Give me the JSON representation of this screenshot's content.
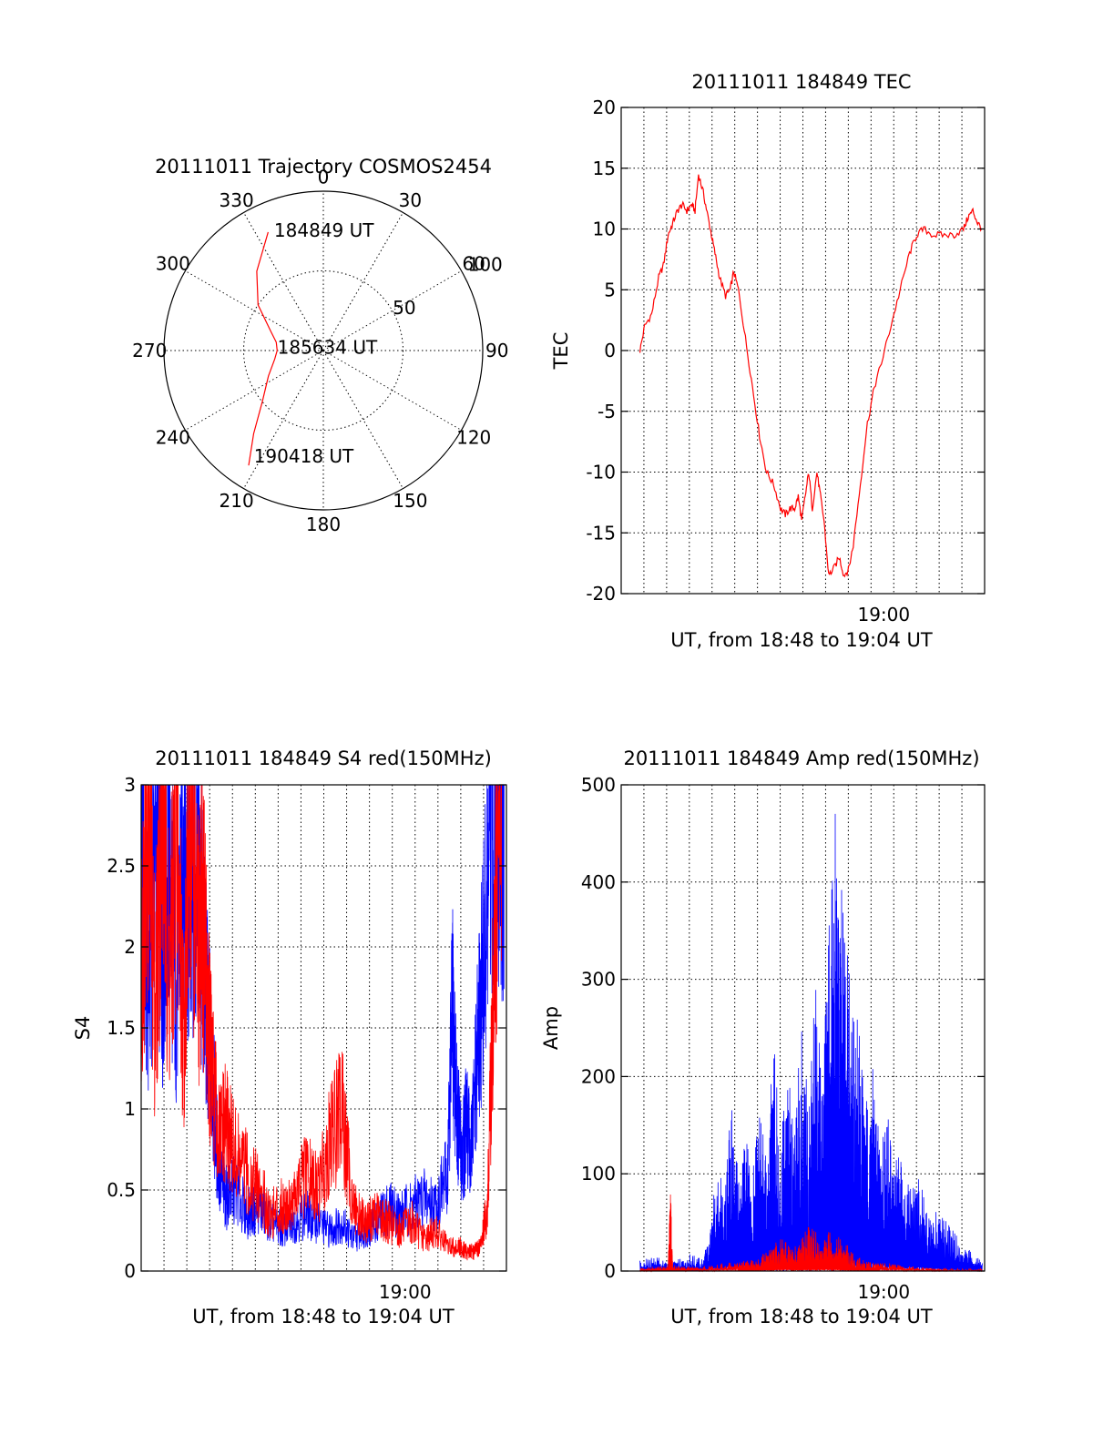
{
  "colors": {
    "red": "#ff0000",
    "blue": "#0000ff",
    "axes": "#000000",
    "background": "#ffffff"
  },
  "chart_data": [
    {
      "type": "polar",
      "title": "20111011 Trajectory COSMOS2454",
      "angle_ticks": [
        "0",
        "30",
        "60",
        "90",
        "120",
        "150",
        "180",
        "210",
        "240",
        "270",
        "300",
        "330"
      ],
      "angle_values_deg": [
        0,
        30,
        60,
        90,
        120,
        150,
        180,
        210,
        240,
        270,
        300,
        330
      ],
      "radius_ticks": [
        "50",
        "100"
      ],
      "radius_values": [
        50,
        100
      ],
      "rlim": [
        0,
        100
      ],
      "grid": true,
      "series": [
        {
          "color": "red",
          "points_az_el": [
            [
              335,
              8
            ],
            [
              320,
              25
            ],
            [
              305,
              40
            ],
            [
              290,
              55
            ],
            [
              280,
              60
            ],
            [
              270,
              61
            ],
            [
              260,
              59
            ],
            [
              245,
              52
            ],
            [
              230,
              40
            ],
            [
              220,
              22
            ],
            [
              213,
              4
            ]
          ]
        }
      ],
      "annotations": [
        {
          "text": "184849 UT",
          "az": 337,
          "el": 8
        },
        {
          "text": "185634 UT",
          "az": 274,
          "el": 60
        },
        {
          "text": "190418 UT",
          "az": 214,
          "el": 10
        }
      ]
    },
    {
      "type": "line",
      "title": "20111011 184849 TEC",
      "xlabel": "UT, from 18:48 to 19:04 UT",
      "ylabel": "TEC",
      "xlim": [
        0,
        15.5
      ],
      "ylim": [
        -20,
        20
      ],
      "xtick_labels": [
        {
          "x": 11.2,
          "label": "19:00"
        }
      ],
      "yticks": [
        -20,
        -15,
        -10,
        -5,
        0,
        5,
        10,
        15,
        20
      ],
      "grid": true,
      "series": [
        {
          "color": "red",
          "x": [
            0.8,
            1.0,
            1.3,
            1.6,
            1.8,
            2.0,
            2.2,
            2.4,
            2.6,
            2.8,
            3.0,
            3.15,
            3.3,
            3.5,
            3.7,
            3.85,
            4.0,
            4.2,
            4.45,
            4.65,
            4.8,
            5.0,
            5.3,
            5.6,
            5.9,
            6.2,
            6.5,
            6.8,
            7.0,
            7.2,
            7.4,
            7.55,
            7.7,
            7.85,
            8.0,
            8.15,
            8.35,
            8.5,
            8.65,
            8.85,
            9.05,
            9.3,
            9.5,
            9.7,
            9.9,
            10.2,
            10.5,
            10.8,
            11.1,
            11.5,
            11.9,
            12.3,
            12.6,
            12.9,
            13.3,
            13.7,
            14.2,
            14.6,
            14.8,
            15.0,
            15.2,
            15.4
          ],
          "y": [
            0,
            2,
            3,
            6,
            7,
            9.5,
            10.5,
            11.5,
            12,
            11.5,
            12,
            11.5,
            14.5,
            13,
            11,
            9.5,
            8,
            6,
            4.5,
            5,
            6.5,
            5,
            1,
            -3,
            -7,
            -10,
            -11,
            -13,
            -13.5,
            -13,
            -13,
            -12,
            -14,
            -12,
            -10,
            -13,
            -10,
            -12,
            -14,
            -18.5,
            -18,
            -17,
            -18.5,
            -18,
            -16,
            -11,
            -6,
            -3,
            -1,
            2,
            5,
            8,
            9.5,
            10,
            9.5,
            9.5,
            9.5,
            10,
            11,
            11.5,
            10.5,
            10
          ]
        }
      ]
    },
    {
      "type": "line",
      "title": "20111011 184849 S4 red(150MHz)",
      "xlabel": "UT, from 18:48 to 19:04 UT",
      "ylabel": "S4",
      "xlim": [
        0,
        15.5
      ],
      "ylim": [
        0,
        3
      ],
      "xtick_labels": [
        {
          "x": 11.2,
          "label": "19:00"
        }
      ],
      "yticks": [
        0,
        0.5,
        1,
        1.5,
        2,
        2.5,
        3
      ],
      "ytick_labels": [
        "0",
        "0.5",
        "1",
        "1.5",
        "2",
        "2.5",
        "3"
      ],
      "grid": true,
      "series": [
        {
          "color": "blue",
          "x": [
            0,
            0.3,
            0.6,
            0.9,
            1.2,
            1.5,
            1.8,
            2.1,
            2.4,
            2.6,
            2.8,
            3.0,
            3.3,
            3.6,
            4.0,
            4.5,
            5.0,
            5.5,
            6.0,
            6.5,
            7.0,
            7.5,
            8.0,
            8.5,
            9.0,
            9.5,
            10.0,
            10.5,
            11.0,
            11.5,
            12.0,
            12.5,
            13.0,
            13.2,
            13.4,
            13.6,
            13.8,
            14.0,
            14.3,
            14.6,
            14.9,
            15.2,
            15.4
          ],
          "y": [
            2.5,
            1.8,
            2.8,
            2.0,
            2.6,
            1.7,
            2.9,
            2.1,
            2.6,
            2.0,
            1.6,
            1.2,
            0.6,
            0.45,
            0.5,
            0.35,
            0.4,
            0.3,
            0.25,
            0.3,
            0.35,
            0.3,
            0.25,
            0.3,
            0.2,
            0.25,
            0.3,
            0.4,
            0.35,
            0.4,
            0.45,
            0.4,
            0.6,
            1.6,
            1.0,
            0.7,
            0.9,
            0.7,
            1.4,
            2.0,
            3.0,
            3.0,
            3.0
          ]
        },
        {
          "color": "red",
          "x": [
            0,
            0.3,
            0.6,
            0.9,
            1.2,
            1.5,
            1.8,
            2.1,
            2.4,
            2.6,
            2.8,
            3.0,
            3.3,
            3.6,
            4.0,
            4.5,
            5.0,
            5.5,
            6.0,
            6.5,
            7.0,
            7.5,
            8.0,
            8.5,
            9.0,
            9.5,
            10.0,
            10.5,
            11.0,
            11.5,
            12.0,
            12.5,
            13.0,
            13.5,
            13.8,
            14.1,
            14.4,
            14.7,
            15.0,
            15.3
          ],
          "y": [
            2.0,
            2.9,
            1.6,
            3.0,
            1.8,
            2.7,
            1.5,
            2.9,
            1.9,
            2.3,
            1.7,
            1.2,
            0.8,
            0.9,
            0.7,
            0.6,
            0.5,
            0.35,
            0.4,
            0.45,
            0.6,
            0.5,
            0.8,
            1.0,
            0.4,
            0.3,
            0.35,
            0.3,
            0.25,
            0.3,
            0.2,
            0.25,
            0.15,
            0.15,
            0.12,
            0.12,
            0.15,
            0.4,
            2.0,
            3.0
          ]
        }
      ]
    },
    {
      "type": "line",
      "title": "20111011 184849 Amp red(150MHz)",
      "xlabel": "UT, from 18:48 to 19:04 UT",
      "ylabel": "Amp",
      "xlim": [
        0,
        15.5
      ],
      "ylim": [
        0,
        500
      ],
      "xtick_labels": [
        {
          "x": 11.2,
          "label": "19:00"
        }
      ],
      "yticks": [
        0,
        100,
        200,
        300,
        400,
        500
      ],
      "grid": true,
      "series": [
        {
          "color": "blue",
          "x": [
            0.8,
            1.5,
            2.2,
            2.9,
            3.5,
            3.8,
            4.1,
            4.4,
            4.7,
            5.0,
            5.3,
            5.6,
            5.9,
            6.2,
            6.5,
            6.8,
            7.1,
            7.4,
            7.7,
            8.0,
            8.3,
            8.6,
            8.9,
            9.1,
            9.3,
            9.5,
            9.8,
            10.1,
            10.4,
            10.7,
            11.0,
            11.3,
            11.6,
            11.9,
            12.2,
            12.6,
            13.0,
            13.5,
            14.0,
            14.5,
            15.0,
            15.4
          ],
          "y": [
            10,
            12,
            8,
            15,
            10,
            40,
            100,
            60,
            150,
            90,
            120,
            80,
            150,
            90,
            200,
            110,
            180,
            120,
            220,
            160,
            260,
            180,
            330,
            420,
            300,
            360,
            230,
            250,
            150,
            180,
            120,
            150,
            90,
            110,
            80,
            90,
            60,
            50,
            40,
            25,
            15,
            8
          ]
        },
        {
          "color": "red",
          "x": [
            0.8,
            1.5,
            2.0,
            2.1,
            2.2,
            3.0,
            4.0,
            5.0,
            5.5,
            6.0,
            6.5,
            7.0,
            7.5,
            8.0,
            8.5,
            9.0,
            9.5,
            10.0,
            10.5,
            11.0,
            12.0,
            13.0,
            14.0,
            15.4
          ],
          "y": [
            3,
            4,
            5,
            80,
            5,
            4,
            6,
            8,
            10,
            15,
            25,
            30,
            20,
            40,
            30,
            35,
            25,
            15,
            10,
            8,
            5,
            3,
            2,
            2
          ]
        }
      ]
    }
  ]
}
